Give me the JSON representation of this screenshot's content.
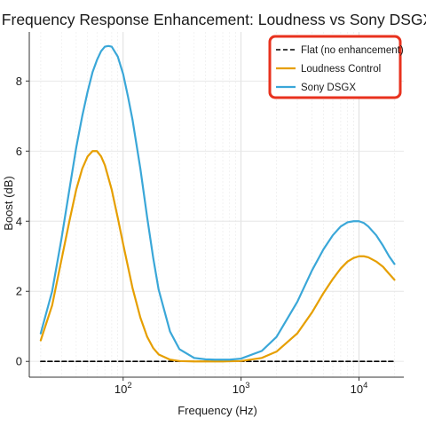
{
  "chart_data": {
    "type": "line",
    "title": "Frequency Response Enhancement: Loudness vs Sony DSGX",
    "xlabel": "Frequency (Hz)",
    "ylabel": "Boost (dB)",
    "xscale": "log",
    "xlim": [
      16,
      24000
    ],
    "ylim": [
      -0.45,
      9.4
    ],
    "xticks": [
      {
        "value": 100,
        "base": "10",
        "exp": "2"
      },
      {
        "value": 1000,
        "base": "10",
        "exp": "3"
      },
      {
        "value": 10000,
        "base": "10",
        "exp": "4"
      }
    ],
    "yticks": [
      0,
      2,
      4,
      6,
      8
    ],
    "grid": true,
    "legend": {
      "placement": "top-right",
      "highlight_color": "#e8321e"
    },
    "series": [
      {
        "name": "Flat (no enhancement)",
        "color": "#000000",
        "style": "dashed",
        "x": [
          20,
          20000
        ],
        "y": [
          0,
          0
        ]
      },
      {
        "name": "Loudness Control",
        "color": "#e69f00",
        "style": "solid",
        "x": [
          20,
          25,
          30,
          35,
          40,
          45,
          50,
          55,
          60,
          65,
          70,
          80,
          90,
          100,
          120,
          140,
          160,
          180,
          200,
          250,
          300,
          400,
          500,
          700,
          1000,
          1500,
          2000,
          3000,
          4000,
          5000,
          6000,
          7000,
          8000,
          9000,
          10000,
          11000,
          12000,
          14000,
          16000,
          18000,
          20000
        ],
        "y": [
          0.6,
          1.6,
          2.9,
          4.0,
          4.9,
          5.5,
          5.85,
          6.0,
          6.0,
          5.85,
          5.6,
          4.9,
          4.1,
          3.35,
          2.1,
          1.25,
          0.7,
          0.38,
          0.2,
          0.05,
          0.01,
          0,
          0,
          0,
          0.01,
          0.1,
          0.28,
          0.8,
          1.4,
          1.95,
          2.35,
          2.65,
          2.85,
          2.95,
          3.0,
          3.0,
          2.97,
          2.85,
          2.7,
          2.5,
          2.33
        ]
      },
      {
        "name": "Sony DSGX",
        "color": "#3aa7d8",
        "style": "solid",
        "x": [
          20,
          25,
          30,
          35,
          40,
          45,
          50,
          55,
          60,
          65,
          70,
          75,
          80,
          90,
          100,
          110,
          120,
          140,
          160,
          180,
          200,
          250,
          300,
          400,
          500,
          600,
          700,
          800,
          1000,
          1500,
          2000,
          3000,
          4000,
          5000,
          6000,
          7000,
          8000,
          9000,
          10000,
          11000,
          12000,
          14000,
          16000,
          18000,
          20000
        ],
        "y": [
          0.8,
          2.0,
          3.5,
          4.9,
          6.1,
          7.0,
          7.7,
          8.25,
          8.6,
          8.85,
          8.98,
          9.0,
          8.98,
          8.7,
          8.2,
          7.55,
          6.9,
          5.5,
          4.1,
          2.95,
          2.05,
          0.85,
          0.35,
          0.1,
          0.06,
          0.05,
          0.05,
          0.05,
          0.08,
          0.3,
          0.7,
          1.7,
          2.6,
          3.2,
          3.6,
          3.85,
          3.97,
          4.0,
          4.0,
          3.95,
          3.85,
          3.6,
          3.3,
          3.0,
          2.78
        ]
      }
    ]
  }
}
